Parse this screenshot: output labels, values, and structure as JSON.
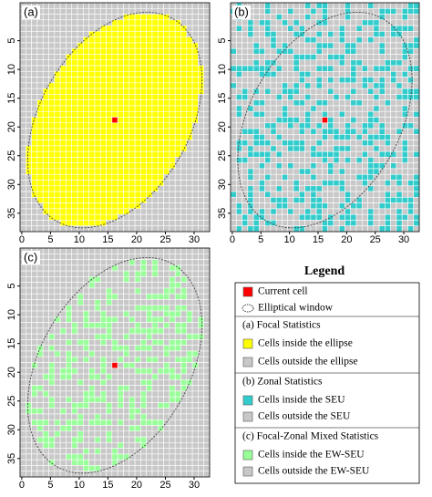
{
  "panels": [
    {
      "label": "(a)",
      "mode": "ellipse",
      "inside_color": "#ffff00",
      "outside_color": "#c8c8c8",
      "xlim": [
        -0.3,
        32.7
      ],
      "ylim": [
        -1.6,
        38.2
      ],
      "xticks": [
        0,
        5,
        10,
        15,
        20,
        25,
        30
      ],
      "yticks": [
        5,
        10,
        15,
        20,
        25,
        30,
        35
      ]
    },
    {
      "label": "(b)",
      "mode": "zonal",
      "inside_color": "#33cccc",
      "outside_color": "#c8c8c8",
      "xlim": [
        -0.3,
        32.7
      ],
      "ylim": [
        -1.6,
        38.2
      ],
      "xticks": [
        0,
        5,
        10,
        15,
        20,
        25,
        30
      ],
      "yticks": [
        5,
        10,
        15,
        20,
        25,
        30,
        35
      ]
    },
    {
      "label": "(c)",
      "mode": "mixed",
      "inside_color": "#99ff99",
      "outside_color": "#c8c8c8",
      "xlim": [
        -0.3,
        32.7
      ],
      "ylim": [
        -1.6,
        38.2
      ],
      "xticks": [
        0,
        5,
        10,
        15,
        20,
        25,
        30
      ],
      "yticks": [
        5,
        10,
        15,
        20,
        25,
        30,
        35
      ]
    }
  ],
  "current_cell_color": "#ff0000",
  "legend": {
    "title": "Legend",
    "items": [
      {
        "text": "Current cell",
        "swatch": "#ff0000"
      },
      {
        "text": "Elliptical window",
        "swatch": "ellipse"
      },
      {
        "text": "(a) Focal Statistics"
      },
      {
        "text": "Cells inside the ellipse",
        "swatch": "#ffff00"
      },
      {
        "text": "Cells outside the ellipse",
        "swatch": "#c8c8c8"
      },
      {
        "text": "(b) Zonal Statistics"
      },
      {
        "text": "Cells inside the SEU",
        "swatch": "#33cccc"
      },
      {
        "text": "Cells outside the SEU",
        "swatch": "#c8c8c8"
      },
      {
        "text": "(c) Focal-Zonal Mixed  Statistics"
      },
      {
        "text": "Cells inside the EW-SEU",
        "swatch": "#99ff99"
      },
      {
        "text": "Cells outside the EW-SEU",
        "swatch": "#c8c8c8"
      }
    ]
  }
}
